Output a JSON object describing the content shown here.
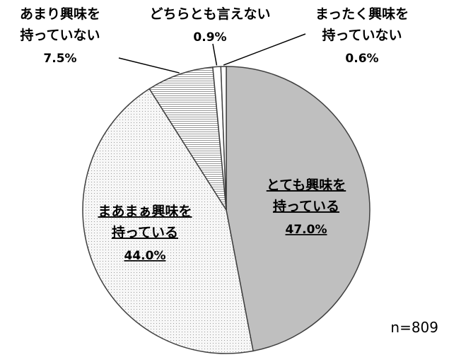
{
  "chart_data": {
    "type": "pie",
    "categories": [
      "とても興味を持っている",
      "まあまぁ興味を持っている",
      "あまり興味を持っていない",
      "どちらとも言えない",
      "まったく興味を持っていない"
    ],
    "values": [
      47.0,
      44.0,
      7.5,
      0.9,
      0.6
    ],
    "value_labels": [
      "47.0%",
      "44.0%",
      "7.5%",
      "0.9%",
      "0.6%"
    ],
    "colors": [
      "#bfbfbf",
      "#f4f4f4",
      "#e8e8e8",
      "#ffffff",
      "#ffffff"
    ],
    "patterns": [
      "none",
      "dots",
      "hlines",
      "none",
      "none"
    ],
    "note": "n=809"
  }
}
